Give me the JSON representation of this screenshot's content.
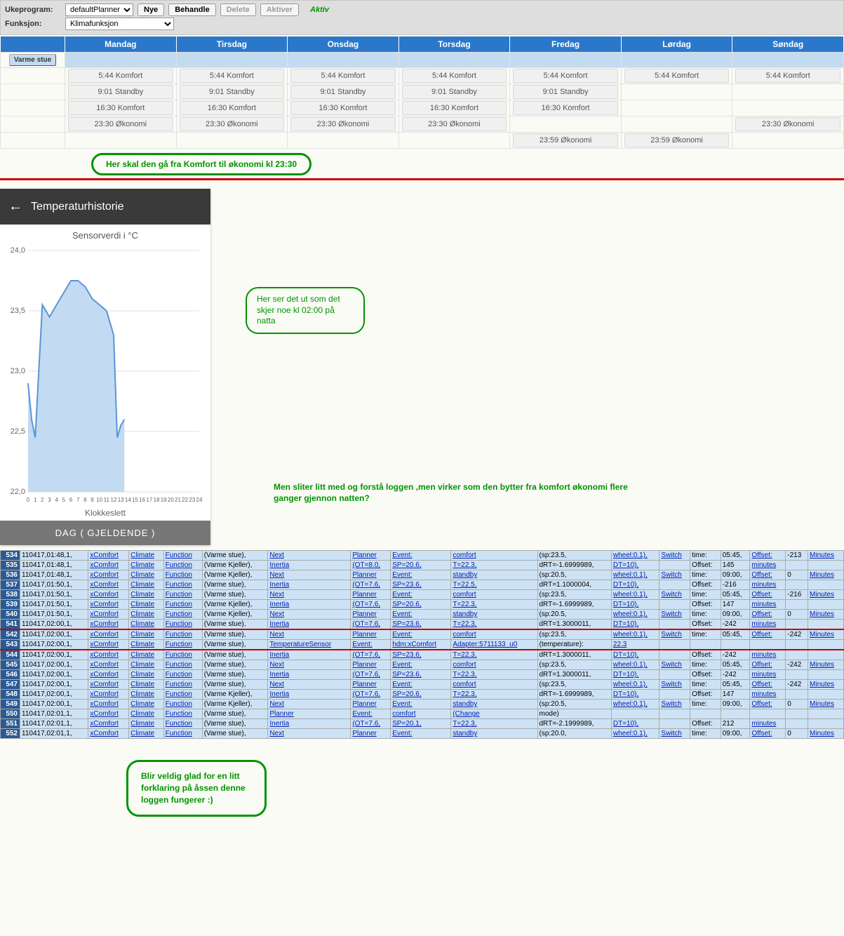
{
  "toolbar": {
    "label_ukeprogram": "Ukeprogram:",
    "label_funksjon": "Funksjon:",
    "planner_select": "defaultPlanner",
    "funksjon_select": "Klimafunksjon",
    "btn_nye": "Nye",
    "btn_behandle": "Behandle",
    "btn_delete": "Delete",
    "btn_aktiver": "Aktiver",
    "status": "Aktiv"
  },
  "schedule": {
    "days": [
      "Mandag",
      "Tirsdag",
      "Onsdag",
      "Torsdag",
      "Fredag",
      "Lørdag",
      "Søndag"
    ],
    "row_label": "Varme stue",
    "grid": [
      [
        "5:44 Komfort",
        "5:44 Komfort",
        "5:44 Komfort",
        "5:44 Komfort",
        "5:44 Komfort",
        "5:44 Komfort",
        "5:44 Komfort"
      ],
      [
        "9:01 Standby",
        "9:01 Standby",
        "9:01 Standby",
        "9:01 Standby",
        "9:01 Standby",
        "",
        ""
      ],
      [
        "16:30 Komfort",
        "16:30 Komfort",
        "16:30 Komfort",
        "16:30 Komfort",
        "16:30 Komfort",
        "",
        ""
      ],
      [
        "23:30 Økonomi",
        "23:30 Økonomi",
        "23:30 Økonomi",
        "23:30 Økonomi",
        "",
        "",
        "23:30 Økonomi"
      ],
      [
        "",
        "",
        "",
        "",
        "23:59 Økonomi",
        "23:59 Økonomi",
        ""
      ]
    ]
  },
  "callouts": {
    "c1": "Her skal den gå fra Komfort til økonomi kl 23:30",
    "c2": "Her ser det ut som det skjer noe kl 02:00 på natta",
    "c3": "Men sliter litt med og forstå loggen ,men virker som den bytter fra komfort økonomi flere ganger gjennon natten?",
    "c4": "Blir veldig glad for en litt forklaring på åssen denne loggen fungerer :)"
  },
  "temp": {
    "header": "Temperaturhistorie",
    "subtitle": "Sensorverdi i  °C",
    "xaxis": "Klokkeslett",
    "banner": "DAG ( GJELDENDE )",
    "yticks": [
      "24,0",
      "23,5",
      "23,0",
      "22,5",
      "22,0"
    ],
    "xticks": [
      0,
      1,
      2,
      3,
      4,
      5,
      6,
      7,
      8,
      9,
      10,
      11,
      12,
      13,
      14,
      15,
      16,
      17,
      18,
      19,
      20,
      21,
      22,
      23,
      24
    ],
    "series": {
      "points": [
        [
          0,
          22.9
        ],
        [
          0.5,
          22.6
        ],
        [
          1,
          22.45
        ],
        [
          2,
          23.55
        ],
        [
          3,
          23.45
        ],
        [
          4,
          23.55
        ],
        [
          5,
          23.65
        ],
        [
          6,
          23.75
        ],
        [
          7,
          23.75
        ],
        [
          8,
          23.7
        ],
        [
          9,
          23.6
        ],
        [
          10,
          23.55
        ],
        [
          11,
          23.5
        ],
        [
          12,
          23.3
        ],
        [
          12.5,
          22.45
        ],
        [
          13,
          22.55
        ],
        [
          13.5,
          22.6
        ]
      ],
      "fill_color": "#b7d4f0",
      "line_color": "#5a96d4",
      "grid_color": "#e0e0e0"
    },
    "ylim": [
      22.0,
      24.0
    ],
    "xlim": [
      0,
      24
    ]
  },
  "log": {
    "rows": [
      {
        "ln": 534,
        "ts": "110417,01:48,1,",
        "mod": "xComfort",
        "a": "Climate",
        "b": "Function",
        "c": "(Varme stue),",
        "d": "Next",
        "e": "Planner",
        "f": "Event:",
        "g": "comfort",
        "h": "(sp:23.5,",
        "i": "wheel:0.1),",
        "j": "Switch",
        "k": "time:",
        "l": "05:45,",
        "m": "Offset:",
        "n": "-213",
        "o": "Minutes"
      },
      {
        "ln": 535,
        "ts": "110417,01:48,1,",
        "mod": "xComfort",
        "a": "Climate",
        "b": "Function",
        "c": "(Varme Kjeller),",
        "d": "Inertia",
        "e": "(OT=8.0,",
        "f": "SP=20.6,",
        "g": "T=22.3,",
        "h": "dRT=-1.6999989,",
        "i": "DT=10),",
        "j": "",
        "k": "Offset:",
        "l": "145",
        "m": "minutes",
        "n": "",
        "o": ""
      },
      {
        "ln": 536,
        "ts": "110417,01:48,1,",
        "mod": "xComfort",
        "a": "Climate",
        "b": "Function",
        "c": "(Varme Kjeller),",
        "d": "Next",
        "e": "Planner",
        "f": "Event:",
        "g": "standby",
        "h": "(sp:20.5,",
        "i": "wheel:0.1),",
        "j": "Switch",
        "k": "time:",
        "l": "09:00,",
        "m": "Offset:",
        "n": "0",
        "o": "Minutes"
      },
      {
        "ln": 537,
        "ts": "110417,01:50,1,",
        "mod": "xComfort",
        "a": "Climate",
        "b": "Function",
        "c": "(Varme stue),",
        "d": "Inertia",
        "e": "(OT=7.6,",
        "f": "SP=23.6,",
        "g": "T=22.5,",
        "h": "dRT=1.1000004,",
        "i": "DT=10),",
        "j": "",
        "k": "Offset:",
        "l": "-216",
        "m": "minutes",
        "n": "",
        "o": ""
      },
      {
        "ln": 538,
        "ts": "110417,01:50,1,",
        "mod": "xComfort",
        "a": "Climate",
        "b": "Function",
        "c": "(Varme stue),",
        "d": "Next",
        "e": "Planner",
        "f": "Event:",
        "g": "comfort",
        "h": "(sp:23.5,",
        "i": "wheel:0.1),",
        "j": "Switch",
        "k": "time:",
        "l": "05:45,",
        "m": "Offset:",
        "n": "-216",
        "o": "Minutes"
      },
      {
        "ln": 539,
        "ts": "110417,01:50,1,",
        "mod": "xComfort",
        "a": "Climate",
        "b": "Function",
        "c": "(Varme Kjeller),",
        "d": "Inertia",
        "e": "(OT=7.6,",
        "f": "SP=20.6,",
        "g": "T=22.3,",
        "h": "dRT=-1.6999989,",
        "i": "DT=10),",
        "j": "",
        "k": "Offset:",
        "l": "147",
        "m": "minutes",
        "n": "",
        "o": ""
      },
      {
        "ln": 540,
        "ts": "110417,01:50,1,",
        "mod": "xComfort",
        "a": "Climate",
        "b": "Function",
        "c": "(Varme Kjeller),",
        "d": "Next",
        "e": "Planner",
        "f": "Event:",
        "g": "standby",
        "h": "(sp:20.5,",
        "i": "wheel:0.1),",
        "j": "Switch",
        "k": "time:",
        "l": "09:00,",
        "m": "Offset:",
        "n": "0",
        "o": "Minutes"
      },
      {
        "ln": 541,
        "ts": "110417,02:00,1,",
        "mod": "xComfort",
        "a": "Climate",
        "b": "Function",
        "c": "(Varme stue),",
        "d": "Inertia",
        "e": "(OT=7.6,",
        "f": "SP=23.6,",
        "g": "T=22.3,",
        "h": "dRT=1.3000011,",
        "i": "DT=10),",
        "j": "",
        "k": "Offset:",
        "l": "-242",
        "m": "minutes",
        "n": "",
        "o": ""
      },
      {
        "ln": 542,
        "ts": "110417,02:00,1,",
        "mod": "xComfort",
        "a": "Climate",
        "b": "Function",
        "c": "(Varme stue),",
        "d": "Next",
        "e": "Planner",
        "f": "Event:",
        "g": "comfort",
        "h": "(sp:23.5,",
        "i": "wheel:0.1),",
        "j": "Switch",
        "k": "time:",
        "l": "05:45,",
        "m": "Offset:",
        "n": "-242",
        "o": "Minutes"
      },
      {
        "ln": 543,
        "ts": "110417,02:00,1,",
        "mod": "xComfort",
        "a": "Climate",
        "b": "Function",
        "c": "(Varme stue),",
        "d": "TemperatureSensor",
        "e": "Event:",
        "f": "hdm:xComfort",
        "g": "Adapter:5711133_u0",
        "h": "(temperature):",
        "i": "22.3",
        "j": "",
        "k": "",
        "l": "",
        "m": "",
        "n": "",
        "o": ""
      },
      {
        "ln": 544,
        "ts": "110417,02:00,1,",
        "mod": "xComfort",
        "a": "Climate",
        "b": "Function",
        "c": "(Varme stue),",
        "d": "Inertia",
        "e": "(OT=7.6,",
        "f": "SP=23.6,",
        "g": "T=22.3,",
        "h": "dRT=1.3000011,",
        "i": "DT=10),",
        "j": "",
        "k": "Offset:",
        "l": "-242",
        "m": "minutes",
        "n": "",
        "o": ""
      },
      {
        "ln": 545,
        "ts": "110417,02:00,1,",
        "mod": "xComfort",
        "a": "Climate",
        "b": "Function",
        "c": "(Varme stue),",
        "d": "Next",
        "e": "Planner",
        "f": "Event:",
        "g": "comfort",
        "h": "(sp:23.5,",
        "i": "wheel:0.1),",
        "j": "Switch",
        "k": "time:",
        "l": "05:45,",
        "m": "Offset:",
        "n": "-242",
        "o": "Minutes"
      },
      {
        "ln": 546,
        "ts": "110417,02:00,1,",
        "mod": "xComfort",
        "a": "Climate",
        "b": "Function",
        "c": "(Varme stue),",
        "d": "Inertia",
        "e": "(OT=7.6,",
        "f": "SP=23.6,",
        "g": "T=22.3,",
        "h": "dRT=1.3000011,",
        "i": "DT=10),",
        "j": "",
        "k": "Offset:",
        "l": "-242",
        "m": "minutes",
        "n": "",
        "o": ""
      },
      {
        "ln": 547,
        "ts": "110417,02:00,1,",
        "mod": "xComfort",
        "a": "Climate",
        "b": "Function",
        "c": "(Varme stue),",
        "d": "Next",
        "e": "Planner",
        "f": "Event:",
        "g": "comfort",
        "h": "(sp:23.5,",
        "i": "wheel:0.1),",
        "j": "Switch",
        "k": "time:",
        "l": "05:45,",
        "m": "Offset:",
        "n": "-242",
        "o": "Minutes"
      },
      {
        "ln": 548,
        "ts": "110417,02:00,1,",
        "mod": "xComfort",
        "a": "Climate",
        "b": "Function",
        "c": "(Varme Kjeller),",
        "d": "Inertia",
        "e": "(OT=7.6,",
        "f": "SP=20.6,",
        "g": "T=22.3,",
        "h": "dRT=-1.6999989,",
        "i": "DT=10),",
        "j": "",
        "k": "Offset:",
        "l": "147",
        "m": "minutes",
        "n": "",
        "o": ""
      },
      {
        "ln": 549,
        "ts": "110417,02:00,1,",
        "mod": "xComfort",
        "a": "Climate",
        "b": "Function",
        "c": "(Varme Kjeller),",
        "d": "Next",
        "e": "Planner",
        "f": "Event:",
        "g": "standby",
        "h": "(sp:20.5,",
        "i": "wheel:0.1),",
        "j": "Switch",
        "k": "time:",
        "l": "09:00,",
        "m": "Offset:",
        "n": "0",
        "o": "Minutes"
      },
      {
        "ln": 550,
        "ts": "110417,02:01,1,",
        "mod": "xComfort",
        "a": "Climate",
        "b": "Function",
        "c": "(Varme stue),",
        "d": "Planner",
        "e": "Event:",
        "f": "comfort",
        "g": "(Change",
        "h": "mode)",
        "i": "",
        "j": "",
        "k": "",
        "l": "",
        "m": "",
        "n": "",
        "o": ""
      },
      {
        "ln": 551,
        "ts": "110417,02:01,1,",
        "mod": "xComfort",
        "a": "Climate",
        "b": "Function",
        "c": "(Varme stue),",
        "d": "Inertia",
        "e": "(OT=7.6,",
        "f": "SP=20.1,",
        "g": "T=22.3,",
        "h": "dRT=-2.1999989,",
        "i": "DT=10),",
        "j": "",
        "k": "Offset:",
        "l": "212",
        "m": "minutes",
        "n": "",
        "o": ""
      },
      {
        "ln": 552,
        "ts": "110417,02:01,1,",
        "mod": "xComfort",
        "a": "Climate",
        "b": "Function",
        "c": "(Varme stue),",
        "d": "Next",
        "e": "Planner",
        "f": "Event:",
        "g": "standby",
        "h": "(sp:20.0,",
        "i": "wheel:0.1),",
        "j": "Switch",
        "k": "time:",
        "l": "09:00,",
        "m": "Offset:",
        "n": "0",
        "o": "Minutes"
      }
    ]
  }
}
